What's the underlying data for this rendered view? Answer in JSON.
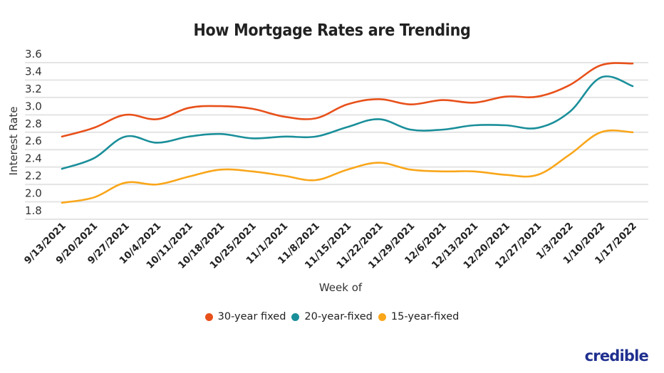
{
  "logo": "credible",
  "chart_data": {
    "type": "line",
    "title": "How Mortgage Rates are Trending",
    "xlabel": "Week of",
    "ylabel": "Interest Rate",
    "ylim": [
      1.8,
      3.6
    ],
    "yticks": [
      "3.6",
      "3.4",
      "3.2",
      "3.0",
      "2.8",
      "2.6",
      "2.4",
      "2.2",
      "2.0",
      "1.8"
    ],
    "grid": true,
    "legend_position": "bottom",
    "categories": [
      "9/13/2021",
      "9/20/2021",
      "9/27/2021",
      "10/4/2021",
      "10/11/2021",
      "10/18/2021",
      "10/25/2021",
      "11/1/2021",
      "11/8/2021",
      "11/15/2021",
      "11/22/2021",
      "11/29/2021",
      "12/6/2021",
      "12/13/2021",
      "12/20/2021",
      "12/27/2021",
      "1/3/2022",
      "1/10/2022",
      "1/17/2022"
    ],
    "series": [
      {
        "name": "30-year fixed",
        "color": "#e8501a",
        "values": [
          2.75,
          2.85,
          3.0,
          2.95,
          3.08,
          3.1,
          3.07,
          2.98,
          2.96,
          3.12,
          3.18,
          3.12,
          3.17,
          3.14,
          3.21,
          3.21,
          3.34,
          3.57,
          3.59
        ]
      },
      {
        "name": "20-year-fixed",
        "color": "#1a8f9a",
        "values": [
          2.38,
          2.5,
          2.75,
          2.68,
          2.75,
          2.78,
          2.73,
          2.75,
          2.75,
          2.86,
          2.95,
          2.83,
          2.83,
          2.88,
          2.88,
          2.85,
          3.03,
          3.43,
          3.33
        ]
      },
      {
        "name": "15-year-fixed",
        "color": "#f9a61a",
        "values": [
          1.99,
          2.05,
          2.22,
          2.2,
          2.29,
          2.37,
          2.35,
          2.3,
          2.25,
          2.37,
          2.45,
          2.37,
          2.35,
          2.35,
          2.31,
          2.31,
          2.54,
          2.8,
          2.8
        ]
      }
    ]
  }
}
